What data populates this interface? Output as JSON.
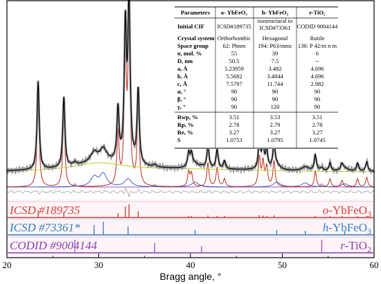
{
  "chart_data": {
    "type": "line",
    "xlabel": "Bragg angle, °",
    "xlim": [
      20,
      60
    ],
    "xticks": [
      20,
      30,
      40,
      50,
      60
    ],
    "peaks": {
      "o": [
        {
          "x": 23.4,
          "h": 0.55
        },
        {
          "x": 26.2,
          "h": 0.44
        },
        {
          "x": 32.1,
          "h": 0.33
        },
        {
          "x": 32.9,
          "h": 0.82
        },
        {
          "x": 33.3,
          "h": 0.98
        },
        {
          "x": 34.3,
          "h": 0.47
        },
        {
          "x": 39.8,
          "h": 0.09
        },
        {
          "x": 40.1,
          "h": 0.08
        },
        {
          "x": 41.9,
          "h": 0.15
        },
        {
          "x": 42.9,
          "h": 0.12
        },
        {
          "x": 43.7,
          "h": 0.05
        },
        {
          "x": 47.5,
          "h": 0.18
        },
        {
          "x": 47.9,
          "h": 0.15
        },
        {
          "x": 48.3,
          "h": 0.12
        },
        {
          "x": 49.1,
          "h": 0.16
        },
        {
          "x": 53.6,
          "h": 0.1
        },
        {
          "x": 55.2,
          "h": 0.05
        },
        {
          "x": 56.5,
          "h": 0.04
        },
        {
          "x": 58.2,
          "h": 0.05
        },
        {
          "x": 59.2,
          "h": 0.06
        }
      ],
      "h": [
        {
          "x": 29.5,
          "h": 0.06
        },
        {
          "x": 30.5,
          "h": 0.08
        },
        {
          "x": 33.2,
          "h": 0.05
        },
        {
          "x": 40.5,
          "h": 0.03
        },
        {
          "x": 49.4,
          "h": 0.03
        },
        {
          "x": 52.5,
          "h": 0.025
        },
        {
          "x": 56.8,
          "h": 0.02
        }
      ],
      "r": [
        {
          "x": 27.4,
          "h": 0.02
        },
        {
          "x": 36.1,
          "h": 0.015
        },
        {
          "x": 41.2,
          "h": 0.01
        },
        {
          "x": 54.3,
          "h": 0.02
        }
      ]
    }
  },
  "table": {
    "header": [
      "Parameters",
      "o- YbFeO₃",
      "h- YbFeO₃",
      "r-TiO₂"
    ],
    "rows": [
      {
        "label": "Initial CIF",
        "o": "ICSD#189735",
        "h": "isostructural to ICSD#73361",
        "r": "CODID 9004144"
      },
      {
        "label": "Crystal system",
        "o": "Orthorhombic",
        "h": "Hexagonal",
        "r": "Rutile"
      },
      {
        "label": "Space group",
        "o": "62: Pbnm",
        "h": "194: P63/mmc",
        "r": "136: P 42/m n m"
      },
      {
        "label": "σ, mol. %",
        "o": "55",
        "h": "39",
        "r": "6"
      },
      {
        "label": "D, nm",
        "o": "50.5",
        "h": "7.5",
        "r": "--"
      },
      {
        "label": "a, Å",
        "o": "5.23959",
        "h": "3.482",
        "r": "4.696"
      },
      {
        "label": "b, Å",
        "o": "5.5682",
        "h": "3.4844",
        "r": "4.696"
      },
      {
        "label": "c, Å",
        "o": "7.5797",
        "h": "11.744",
        "r": "2.982"
      },
      {
        "label": "α, °",
        "o": "90",
        "h": "90",
        "r": "90"
      },
      {
        "label": "β, °",
        "o": "90",
        "h": "90",
        "r": "90"
      },
      {
        "label": "γ, °",
        "o": "90",
        "h": "120",
        "r": "90"
      },
      {
        "label": "Rwp, %",
        "o": "3.51",
        "h": "3.53",
        "r": "3.51"
      },
      {
        "label": "Rp, %",
        "o": "2.78",
        "h": "2.79",
        "r": "2.78"
      },
      {
        "label": "Re, %",
        "o": "3.27",
        "h": "3.27",
        "r": "3.27"
      },
      {
        "label": "S",
        "o": "1.0753",
        "h": "1.0795",
        "r": "1.0745"
      }
    ]
  },
  "refs": [
    {
      "tag": "ICSD  #189735",
      "phase_prefix": "o-",
      "phase": "YbFeO",
      "sub": "3",
      "color": "#d9403a"
    },
    {
      "tag": "ICSD  #73361*",
      "phase_prefix": "h-",
      "phase": "YbFeO",
      "sub": "3",
      "color": "#2f7fc0"
    },
    {
      "tag": "CODID #9004144",
      "phase_prefix": "r-",
      "phase": "TiO",
      "sub": "2",
      "color": "#8a3fb0"
    }
  ],
  "colors": {
    "observed": "#9a9a9a",
    "calc": "#000000",
    "o_phase": "#c0392b",
    "h_phase": "#3a5fc8",
    "r_phase": "#a050c0",
    "background": "#b8d830",
    "difference": "#b0b0b0"
  }
}
